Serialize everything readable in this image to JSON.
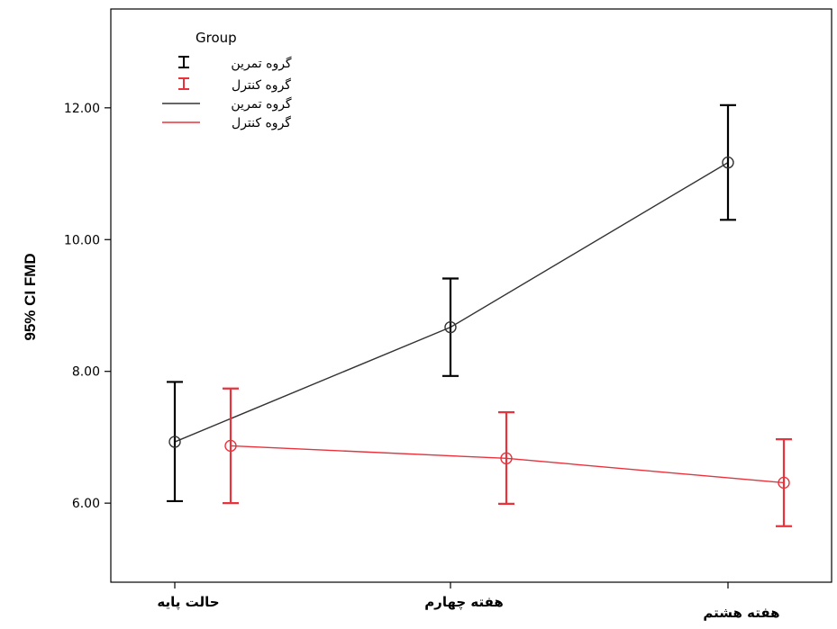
{
  "chart_data": {
    "type": "line",
    "title": "",
    "xlabel": "",
    "ylabel": "95% CI FMD",
    "categories": [
      "حالت پایه",
      "هفته چهارم",
      "هفته هشتم"
    ],
    "y_ticks": [
      "6.00",
      "8.00",
      "10.00",
      "12.00"
    ],
    "ylim": [
      4.8,
      13.5
    ],
    "grid": false,
    "legend": {
      "title": "Group",
      "placement": "top-left",
      "entries": [
        {
          "label": "گروه تمرین",
          "kind": "errorbar",
          "color": "#000000"
        },
        {
          "label": "گروه کنترل",
          "kind": "errorbar",
          "color": "#e8323c"
        },
        {
          "label": "گروه تمرین",
          "kind": "line",
          "color": "#333333"
        },
        {
          "label": "گروه کنترل",
          "kind": "line",
          "color": "#e8323c"
        }
      ]
    },
    "series": [
      {
        "name": "گروه تمرین",
        "color": "#000000",
        "line_color": "#333333",
        "mean": [
          6.93,
          8.67,
          11.17
        ],
        "ci_low": [
          6.03,
          7.93,
          10.3
        ],
        "ci_high": [
          7.84,
          9.41,
          12.04
        ]
      },
      {
        "name": "گروه کنترل",
        "color": "#e8323c",
        "line_color": "#e8323c",
        "mean": [
          6.87,
          6.68,
          6.31
        ],
        "ci_low": [
          6.0,
          5.99,
          5.65
        ],
        "ci_high": [
          7.74,
          7.38,
          6.97
        ]
      }
    ]
  }
}
